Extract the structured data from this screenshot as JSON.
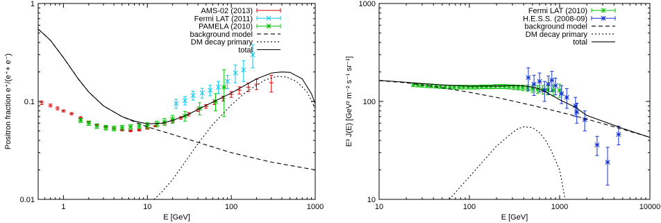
{
  "chart_data": [
    {
      "type": "scatter",
      "xlabel": "E [GeV]",
      "ylabel": "Positron fraction e⁺/(e⁺+ e⁻)",
      "xscale": "log",
      "yscale": "log",
      "xlim": [
        0.5,
        1000
      ],
      "ylim": [
        0.01,
        1
      ],
      "xticks": [
        1,
        10,
        100,
        1000
      ],
      "yticks": [
        0.01,
        0.1,
        1
      ],
      "xtick_labels": [
        "1",
        "10",
        "100",
        "1000"
      ],
      "ytick_labels": [
        "0.01",
        "0.1",
        "1"
      ],
      "legend": "top-right",
      "grid": false,
      "series": [
        {
          "name": "AMS-02 (2013)",
          "kind": "points",
          "color": "#d00000",
          "points": [
            {
              "x": 0.55,
              "y": 0.097,
              "yerr": 0.004
            },
            {
              "x": 0.7,
              "y": 0.091,
              "yerr": 0.003
            },
            {
              "x": 0.85,
              "y": 0.085,
              "yerr": 0.003
            },
            {
              "x": 1.0,
              "y": 0.08,
              "yerr": 0.002
            },
            {
              "x": 1.25,
              "y": 0.075,
              "yerr": 0.002
            },
            {
              "x": 1.6,
              "y": 0.068,
              "yerr": 0.002
            },
            {
              "x": 2.0,
              "y": 0.062,
              "yerr": 0.001
            },
            {
              "x": 2.5,
              "y": 0.058,
              "yerr": 0.001
            },
            {
              "x": 3.2,
              "y": 0.055,
              "yerr": 0.001
            },
            {
              "x": 4.0,
              "y": 0.053,
              "yerr": 0.001
            },
            {
              "x": 5.0,
              "y": 0.051,
              "yerr": 0.001
            },
            {
              "x": 6.3,
              "y": 0.05,
              "yerr": 0.001
            },
            {
              "x": 8.0,
              "y": 0.051,
              "yerr": 0.001
            },
            {
              "x": 10.0,
              "y": 0.053,
              "yerr": 0.001
            },
            {
              "x": 12.5,
              "y": 0.056,
              "yerr": 0.001
            },
            {
              "x": 16.0,
              "y": 0.059,
              "yerr": 0.002
            },
            {
              "x": 20.0,
              "y": 0.063,
              "yerr": 0.002
            },
            {
              "x": 25.0,
              "y": 0.068,
              "yerr": 0.002
            },
            {
              "x": 31.0,
              "y": 0.074,
              "yerr": 0.003
            },
            {
              "x": 40.0,
              "y": 0.082,
              "yerr": 0.003
            },
            {
              "x": 50.0,
              "y": 0.089,
              "yerr": 0.004
            },
            {
              "x": 63.0,
              "y": 0.098,
              "yerr": 0.005
            },
            {
              "x": 80.0,
              "y": 0.107,
              "yerr": 0.006
            },
            {
              "x": 100.0,
              "y": 0.118,
              "yerr": 0.008
            },
            {
              "x": 125.0,
              "y": 0.13,
              "yerr": 0.011
            },
            {
              "x": 160.0,
              "y": 0.14,
              "yerr": 0.014
            },
            {
              "x": 200.0,
              "y": 0.15,
              "yerr": 0.018
            },
            {
              "x": 300.0,
              "y": 0.155,
              "yerr": 0.03
            }
          ]
        },
        {
          "name": "Fermi LAT (2011)",
          "kind": "points",
          "color": "#00c8f0",
          "points": [
            {
              "x": 22.0,
              "y": 0.095,
              "yerr": 0.01
            },
            {
              "x": 28.0,
              "y": 0.102,
              "yerr": 0.01
            },
            {
              "x": 35.0,
              "y": 0.115,
              "yerr": 0.012
            },
            {
              "x": 45.0,
              "y": 0.122,
              "yerr": 0.014
            },
            {
              "x": 56.0,
              "y": 0.13,
              "yerr": 0.016
            },
            {
              "x": 70.0,
              "y": 0.14,
              "yerr": 0.02
            },
            {
              "x": 90.0,
              "y": 0.16,
              "yerr": 0.025
            },
            {
              "x": 112.0,
              "y": 0.195,
              "yerr": 0.04
            },
            {
              "x": 140.0,
              "y": 0.21,
              "yerr": 0.05
            },
            {
              "x": 180.0,
              "y": 0.3,
              "yerr": 0.08
            }
          ]
        },
        {
          "name": "PAMELA (2010)",
          "kind": "points",
          "color": "#00c000",
          "points": [
            {
              "x": 1.6,
              "y": 0.064,
              "yerr": 0.003
            },
            {
              "x": 2.0,
              "y": 0.06,
              "yerr": 0.003
            },
            {
              "x": 2.5,
              "y": 0.056,
              "yerr": 0.003
            },
            {
              "x": 3.2,
              "y": 0.054,
              "yerr": 0.003
            },
            {
              "x": 4.0,
              "y": 0.053,
              "yerr": 0.003
            },
            {
              "x": 5.0,
              "y": 0.054,
              "yerr": 0.003
            },
            {
              "x": 6.3,
              "y": 0.055,
              "yerr": 0.003
            },
            {
              "x": 8.0,
              "y": 0.056,
              "yerr": 0.003
            },
            {
              "x": 10.0,
              "y": 0.057,
              "yerr": 0.004
            },
            {
              "x": 13.0,
              "y": 0.059,
              "yerr": 0.004
            },
            {
              "x": 16.0,
              "y": 0.062,
              "yerr": 0.005
            },
            {
              "x": 20.0,
              "y": 0.066,
              "yerr": 0.006
            },
            {
              "x": 28.0,
              "y": 0.071,
              "yerr": 0.008
            },
            {
              "x": 42.0,
              "y": 0.085,
              "yerr": 0.012
            },
            {
              "x": 65.0,
              "y": 0.1,
              "yerr": 0.02
            },
            {
              "x": 82.0,
              "y": 0.14,
              "yerr": 0.07
            }
          ]
        },
        {
          "name": "background model",
          "kind": "line",
          "dash": "6,4",
          "color": "#000000",
          "points": [
            [
              0.5,
              0.55
            ],
            [
              0.7,
              0.42
            ],
            [
              1.0,
              0.28
            ],
            [
              1.5,
              0.17
            ],
            [
              2.0,
              0.125
            ],
            [
              3.0,
              0.09
            ],
            [
              5.0,
              0.07
            ],
            [
              7.0,
              0.062
            ],
            [
              10.0,
              0.055
            ],
            [
              20.0,
              0.046
            ],
            [
              50.0,
              0.036
            ],
            [
              100.0,
              0.03
            ],
            [
              300.0,
              0.024
            ],
            [
              1000.0,
              0.02
            ]
          ]
        },
        {
          "name": "DM decay primary",
          "kind": "line",
          "dash": "2,3",
          "color": "#000000",
          "points": [
            [
              12.0,
              0.01
            ],
            [
              15.0,
              0.012
            ],
            [
              20.0,
              0.016
            ],
            [
              30.0,
              0.026
            ],
            [
              40.0,
              0.037
            ],
            [
              60.0,
              0.058
            ],
            [
              100.0,
              0.092
            ],
            [
              150.0,
              0.125
            ],
            [
              250.0,
              0.165
            ],
            [
              350.0,
              0.18
            ],
            [
              450.0,
              0.178
            ],
            [
              600.0,
              0.16
            ],
            [
              800.0,
              0.125
            ],
            [
              1000.0,
              0.085
            ]
          ]
        },
        {
          "name": "total",
          "kind": "line",
          "dash": "",
          "color": "#000000",
          "points": [
            [
              0.5,
              0.55
            ],
            [
              0.7,
              0.42
            ],
            [
              1.0,
              0.28
            ],
            [
              1.5,
              0.17
            ],
            [
              2.0,
              0.125
            ],
            [
              3.0,
              0.09
            ],
            [
              5.0,
              0.07
            ],
            [
              7.0,
              0.063
            ],
            [
              10.0,
              0.059
            ],
            [
              15.0,
              0.06
            ],
            [
              20.0,
              0.064
            ],
            [
              30.0,
              0.073
            ],
            [
              50.0,
              0.091
            ],
            [
              100.0,
              0.122
            ],
            [
              200.0,
              0.17
            ],
            [
              300.0,
              0.195
            ],
            [
              400.0,
              0.2
            ],
            [
              500.0,
              0.198
            ],
            [
              700.0,
              0.17
            ],
            [
              900.0,
              0.12
            ],
            [
              1000.0,
              0.095
            ]
          ]
        }
      ]
    },
    {
      "type": "scatter",
      "xlabel": "E [GeV]",
      "ylabel": "E³ J(E) [GeV² m⁻² s⁻¹ sr⁻¹]",
      "xscale": "log",
      "yscale": "log",
      "xlim": [
        10,
        10000
      ],
      "ylim": [
        10,
        1000
      ],
      "xticks": [
        10,
        100,
        1000,
        10000
      ],
      "yticks": [
        10,
        100,
        1000
      ],
      "xtick_labels": [
        "10",
        "100",
        "1000",
        "10000"
      ],
      "ytick_labels": [
        "10",
        "100",
        "1000"
      ],
      "legend": "top-right",
      "grid": false,
      "series": [
        {
          "name": "Fermi LAT (2010)",
          "kind": "points",
          "color": "#00c000",
          "points": [
            {
              "x": 24,
              "y": 148,
              "yerr": 6
            },
            {
              "x": 27,
              "y": 147,
              "yerr": 6
            },
            {
              "x": 30,
              "y": 146,
              "yerr": 6
            },
            {
              "x": 34,
              "y": 145,
              "yerr": 6
            },
            {
              "x": 38,
              "y": 144,
              "yerr": 6
            },
            {
              "x": 43,
              "y": 143,
              "yerr": 6
            },
            {
              "x": 48,
              "y": 142,
              "yerr": 6
            },
            {
              "x": 54,
              "y": 141,
              "yerr": 6
            },
            {
              "x": 61,
              "y": 140,
              "yerr": 6
            },
            {
              "x": 68,
              "y": 140,
              "yerr": 6
            },
            {
              "x": 77,
              "y": 140,
              "yerr": 6
            },
            {
              "x": 86,
              "y": 140,
              "yerr": 6
            },
            {
              "x": 97,
              "y": 140,
              "yerr": 6
            },
            {
              "x": 109,
              "y": 140,
              "yerr": 6
            },
            {
              "x": 122,
              "y": 140,
              "yerr": 6
            },
            {
              "x": 137,
              "y": 141,
              "yerr": 6
            },
            {
              "x": 154,
              "y": 141,
              "yerr": 6
            },
            {
              "x": 173,
              "y": 141,
              "yerr": 6
            },
            {
              "x": 194,
              "y": 142,
              "yerr": 7
            },
            {
              "x": 218,
              "y": 142,
              "yerr": 7
            },
            {
              "x": 245,
              "y": 142,
              "yerr": 7
            },
            {
              "x": 275,
              "y": 141,
              "yerr": 7
            },
            {
              "x": 309,
              "y": 140,
              "yerr": 8
            },
            {
              "x": 347,
              "y": 139,
              "yerr": 8
            },
            {
              "x": 390,
              "y": 138,
              "yerr": 9
            },
            {
              "x": 440,
              "y": 137,
              "yerr": 10
            },
            {
              "x": 500,
              "y": 135,
              "yerr": 11
            },
            {
              "x": 570,
              "y": 133,
              "yerr": 12
            },
            {
              "x": 650,
              "y": 132,
              "yerr": 13
            },
            {
              "x": 740,
              "y": 131,
              "yerr": 14
            },
            {
              "x": 850,
              "y": 130,
              "yerr": 16
            },
            {
              "x": 1000,
              "y": 130,
              "yerr": 20
            }
          ]
        },
        {
          "name": "H.E.S.S. (2008-09)",
          "kind": "points",
          "color": "#1030d0",
          "points": [
            {
              "x": 450,
              "y": 175,
              "yerr": 45
            },
            {
              "x": 520,
              "y": 150,
              "yerr": 35
            },
            {
              "x": 600,
              "y": 160,
              "yerr": 35
            },
            {
              "x": 680,
              "y": 130,
              "yerr": 30
            },
            {
              "x": 750,
              "y": 150,
              "yerr": 32
            },
            {
              "x": 820,
              "y": 165,
              "yerr": 38
            },
            {
              "x": 900,
              "y": 145,
              "yerr": 28
            },
            {
              "x": 1050,
              "y": 120,
              "yerr": 25
            },
            {
              "x": 1200,
              "y": 110,
              "yerr": 25
            },
            {
              "x": 1500,
              "y": 90,
              "yerr": 20
            },
            {
              "x": 1550,
              "y": 78,
              "yerr": 18
            },
            {
              "x": 1900,
              "y": 65,
              "yerr": 15
            },
            {
              "x": 2600,
              "y": 36,
              "yerr": 8
            },
            {
              "x": 3400,
              "y": 24,
              "yerr": 10
            },
            {
              "x": 4500,
              "y": 46,
              "yerr": 10
            }
          ]
        },
        {
          "name": "background model",
          "kind": "line",
          "dash": "6,4",
          "color": "#000000",
          "points": [
            [
              10,
              163
            ],
            [
              20,
              155
            ],
            [
              50,
              138
            ],
            [
              100,
              124
            ],
            [
              200,
              110
            ],
            [
              500,
              91
            ],
            [
              1000,
              78
            ],
            [
              2000,
              66
            ],
            [
              5000,
              52
            ],
            [
              10000,
              43
            ]
          ]
        },
        {
          "name": "DM decay primary",
          "kind": "line",
          "dash": "2,3",
          "color": "#000000",
          "points": [
            [
              60,
              10
            ],
            [
              80,
              13.5
            ],
            [
              100,
              17
            ],
            [
              150,
              26
            ],
            [
              200,
              35
            ],
            [
              300,
              48
            ],
            [
              350,
              53
            ],
            [
              400,
              55
            ],
            [
              500,
              54
            ],
            [
              600,
              48
            ],
            [
              700,
              40
            ],
            [
              800,
              32
            ],
            [
              1000,
              20
            ],
            [
              1150,
              10
            ]
          ]
        },
        {
          "name": "total",
          "kind": "line",
          "dash": "",
          "color": "#000000",
          "points": [
            [
              10,
              164
            ],
            [
              20,
              157
            ],
            [
              30,
              152
            ],
            [
              50,
              147
            ],
            [
              100,
              143
            ],
            [
              200,
              144
            ],
            [
              300,
              145
            ],
            [
              400,
              144
            ],
            [
              500,
              140
            ],
            [
              600,
              134
            ],
            [
              800,
              117
            ],
            [
              1000,
              104
            ],
            [
              1500,
              87
            ],
            [
              2000,
              72
            ],
            [
              5000,
              53
            ],
            [
              10000,
              43
            ]
          ]
        }
      ]
    }
  ]
}
